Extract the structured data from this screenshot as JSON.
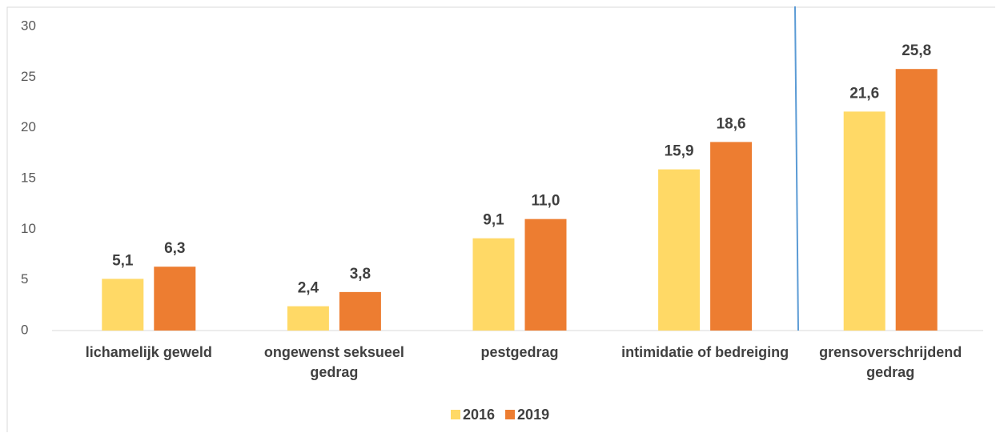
{
  "chart_data": {
    "type": "bar",
    "categories": [
      "lichamelijk geweld",
      "ongewenst seksueel gedrag",
      "pestgedrag",
      "intimidatie of bedreiging",
      "grensoverschrijdend gedrag"
    ],
    "series": [
      {
        "name": "2016",
        "color": "#FFD966",
        "values": [
          5.1,
          2.4,
          9.1,
          15.9,
          21.6
        ],
        "value_labels": [
          "5,1",
          "2,4",
          "9,1",
          "15,9",
          "21,6"
        ]
      },
      {
        "name": "2019",
        "color": "#ED7D31",
        "values": [
          6.3,
          3.8,
          11.0,
          18.6,
          25.8
        ],
        "value_labels": [
          "6,3",
          "3,8",
          "11,0",
          "18,6",
          "25,8"
        ]
      }
    ],
    "ylim": [
      0,
      30
    ],
    "yticks": [
      0,
      5,
      10,
      15,
      20,
      25,
      30
    ],
    "grid": false,
    "legend": "bottom"
  }
}
